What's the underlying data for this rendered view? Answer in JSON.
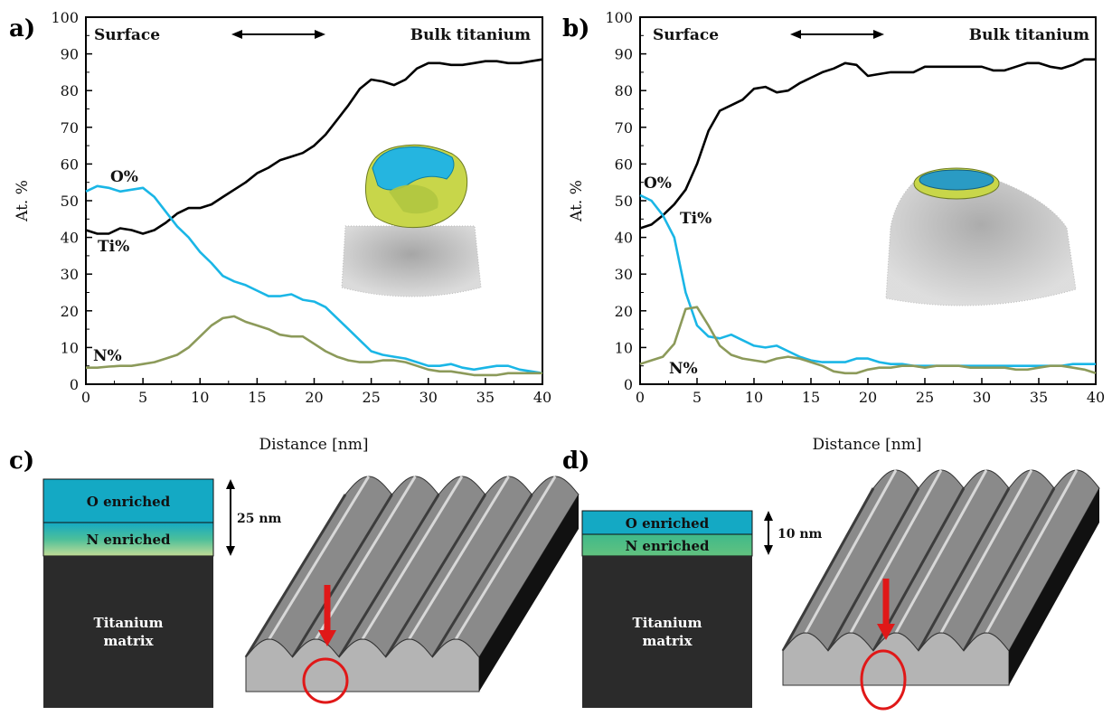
{
  "chart_data": [
    {
      "type": "line",
      "panel_label": "a)",
      "xlabel": "Distance [nm]",
      "ylabel": "At. %",
      "xlim": [
        0,
        40
      ],
      "ylim": [
        0,
        100
      ],
      "xticks": [
        0,
        5,
        10,
        15,
        20,
        25,
        30,
        35,
        40
      ],
      "yticks": [
        0,
        10,
        20,
        30,
        40,
        50,
        60,
        70,
        80,
        90,
        100
      ],
      "annotations": {
        "left": "Surface",
        "right": "Bulk titanium"
      },
      "series": [
        {
          "name": "Ti%",
          "color": "#000000",
          "x": [
            0,
            1,
            2,
            3,
            4,
            5,
            6,
            7,
            8,
            9,
            10,
            11,
            12,
            13,
            14,
            15,
            16,
            17,
            18,
            19,
            20,
            21,
            22,
            23,
            24,
            25,
            26,
            27,
            28,
            29,
            30,
            31,
            32,
            33,
            34,
            35,
            36,
            37,
            38,
            39,
            40
          ],
          "y": [
            42,
            41,
            41,
            42.5,
            42,
            41,
            42,
            44,
            46.5,
            48,
            48,
            49,
            51,
            53,
            55,
            57.5,
            59,
            61,
            62,
            63,
            65,
            68,
            72,
            76,
            80.5,
            83,
            82.5,
            81.5,
            83,
            86,
            87.5,
            87.5,
            87,
            87,
            87.5,
            88,
            88,
            87.5,
            87.5,
            88,
            88.5
          ]
        },
        {
          "name": "O%",
          "color": "#1ab6e6",
          "x": [
            0,
            1,
            2,
            3,
            4,
            5,
            6,
            7,
            8,
            9,
            10,
            11,
            12,
            13,
            14,
            15,
            16,
            17,
            18,
            19,
            20,
            21,
            22,
            23,
            24,
            25,
            26,
            27,
            28,
            29,
            30,
            31,
            32,
            33,
            34,
            35,
            36,
            37,
            38,
            39,
            40
          ],
          "y": [
            52.5,
            54,
            53.5,
            52.5,
            53,
            53.5,
            51,
            47,
            43,
            40,
            36,
            33,
            29.5,
            28,
            27,
            25.5,
            24,
            24,
            24.5,
            23,
            22.5,
            21,
            18,
            15,
            12,
            9,
            8,
            7.5,
            7,
            6,
            5,
            5,
            5.5,
            4.5,
            4,
            4.5,
            5,
            5,
            4,
            3.5,
            3
          ]
        },
        {
          "name": "N%",
          "color": "#8c9a5a",
          "x": [
            0,
            1,
            2,
            3,
            4,
            5,
            6,
            7,
            8,
            9,
            10,
            11,
            12,
            13,
            14,
            15,
            16,
            17,
            18,
            19,
            20,
            21,
            22,
            23,
            24,
            25,
            26,
            27,
            28,
            29,
            30,
            31,
            32,
            33,
            34,
            35,
            36,
            37,
            38,
            39,
            40
          ],
          "y": [
            4.5,
            4.5,
            4.8,
            5,
            5,
            5.5,
            6,
            7,
            8,
            10,
            13,
            16,
            18,
            18.5,
            17,
            16,
            15,
            13.5,
            13,
            13,
            11,
            9,
            7.5,
            6.5,
            6,
            6,
            6.5,
            6.5,
            6,
            5,
            4,
            3.5,
            3.5,
            3,
            2.5,
            2.5,
            2.5,
            3,
            3,
            3,
            3
          ]
        }
      ]
    },
    {
      "type": "line",
      "panel_label": "b)",
      "xlabel": "Distance [nm]",
      "ylabel": "At. %",
      "xlim": [
        0,
        40
      ],
      "ylim": [
        0,
        100
      ],
      "xticks": [
        0,
        5,
        10,
        15,
        20,
        25,
        30,
        35,
        40
      ],
      "yticks": [
        0,
        10,
        20,
        30,
        40,
        50,
        60,
        70,
        80,
        90,
        100
      ],
      "annotations": {
        "left": "Surface",
        "right": "Bulk titanium"
      },
      "series": [
        {
          "name": "Ti%",
          "color": "#000000",
          "x": [
            0,
            1,
            2,
            3,
            4,
            5,
            6,
            7,
            8,
            9,
            10,
            11,
            12,
            13,
            14,
            15,
            16,
            17,
            18,
            19,
            20,
            21,
            22,
            23,
            24,
            25,
            26,
            27,
            28,
            29,
            30,
            31,
            32,
            33,
            34,
            35,
            36,
            37,
            38,
            39,
            40
          ],
          "y": [
            42.5,
            43.5,
            46,
            49,
            53,
            60,
            69,
            74.5,
            76,
            77.5,
            80.5,
            81,
            79.5,
            80,
            82,
            83.5,
            85,
            86,
            87.5,
            87,
            84,
            84.5,
            85,
            85,
            85,
            86.5,
            86.5,
            86.5,
            86.5,
            86.5,
            86.5,
            85.5,
            85.5,
            86.5,
            87.5,
            87.5,
            86.5,
            86,
            87,
            88.5,
            88.5
          ]
        },
        {
          "name": "O%",
          "color": "#1ab6e6",
          "x": [
            0,
            1,
            2,
            3,
            4,
            5,
            6,
            7,
            8,
            9,
            10,
            11,
            12,
            13,
            14,
            15,
            16,
            17,
            18,
            19,
            20,
            21,
            22,
            23,
            24,
            25,
            26,
            27,
            28,
            29,
            30,
            31,
            32,
            33,
            34,
            35,
            36,
            37,
            38,
            39,
            40
          ],
          "y": [
            51.5,
            50,
            46,
            40,
            25,
            16,
            13,
            12.5,
            13.5,
            12,
            10.5,
            10,
            10.5,
            9,
            7.5,
            6.5,
            6,
            6,
            6,
            7,
            7,
            6,
            5.5,
            5.5,
            5,
            5,
            5,
            5,
            5,
            5,
            5,
            5,
            5,
            5,
            5,
            5,
            5,
            5,
            5.5,
            5.5,
            5.5
          ]
        },
        {
          "name": "N%",
          "color": "#8c9a5a",
          "x": [
            0,
            1,
            2,
            3,
            4,
            5,
            6,
            7,
            8,
            9,
            10,
            11,
            12,
            13,
            14,
            15,
            16,
            17,
            18,
            19,
            20,
            21,
            22,
            23,
            24,
            25,
            26,
            27,
            28,
            29,
            30,
            31,
            32,
            33,
            34,
            35,
            36,
            37,
            38,
            39,
            40
          ],
          "y": [
            5.5,
            6.5,
            7.5,
            11,
            20.5,
            21,
            16,
            10.5,
            8,
            7,
            6.5,
            6,
            7,
            7.5,
            7,
            6,
            5,
            3.5,
            3,
            3,
            4,
            4.5,
            4.5,
            5,
            5,
            4.5,
            5,
            5,
            5,
            4.5,
            4.5,
            4.5,
            4.5,
            4,
            4,
            4.5,
            5,
            5,
            4.5,
            4,
            3
          ]
        }
      ]
    }
  ],
  "panel_c": {
    "label": "c)",
    "layer_top": "O enriched",
    "layer_mid": "N enriched",
    "matrix": [
      "Titanium",
      "matrix"
    ],
    "thickness": "25 nm"
  },
  "panel_d": {
    "label": "d)",
    "layer_top": "O enriched",
    "layer_mid": "N enriched",
    "matrix": [
      "Titanium",
      "matrix"
    ],
    "thickness": "10 nm"
  },
  "colors": {
    "oxygen_layer": "#14a9c4",
    "nitrogen_layer": "#5ec08c",
    "matrix": "#2b2b2b",
    "marker": "#e01818"
  }
}
